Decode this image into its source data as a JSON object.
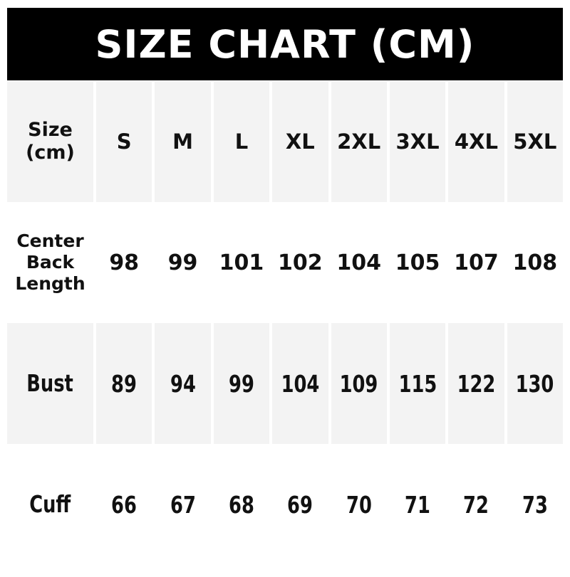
{
  "title": "SIZE CHART (CM)",
  "chart_data": {
    "type": "table",
    "title": "SIZE CHART (CM)",
    "units": "cm",
    "corner_header": {
      "line1": "Size",
      "line2": "(cm)"
    },
    "sizes": [
      "S",
      "M",
      "L",
      "XL",
      "2XL",
      "3XL",
      "4XL",
      "5XL"
    ],
    "rows": [
      {
        "label": "Center Back Length",
        "values": [
          98,
          99,
          101,
          102,
          104,
          105,
          107,
          108
        ]
      },
      {
        "label": "Bust",
        "values": [
          89,
          94,
          99,
          104,
          109,
          115,
          122,
          130
        ]
      },
      {
        "label": "Cuff",
        "values": [
          66,
          67,
          68,
          69,
          70,
          71,
          72,
          73
        ]
      }
    ]
  },
  "colors": {
    "header_bg": "#000000",
    "header_text": "#ffffff",
    "shaded_cell": "#f3f3f3",
    "text": "#111111",
    "page_bg": "#ffffff"
  }
}
